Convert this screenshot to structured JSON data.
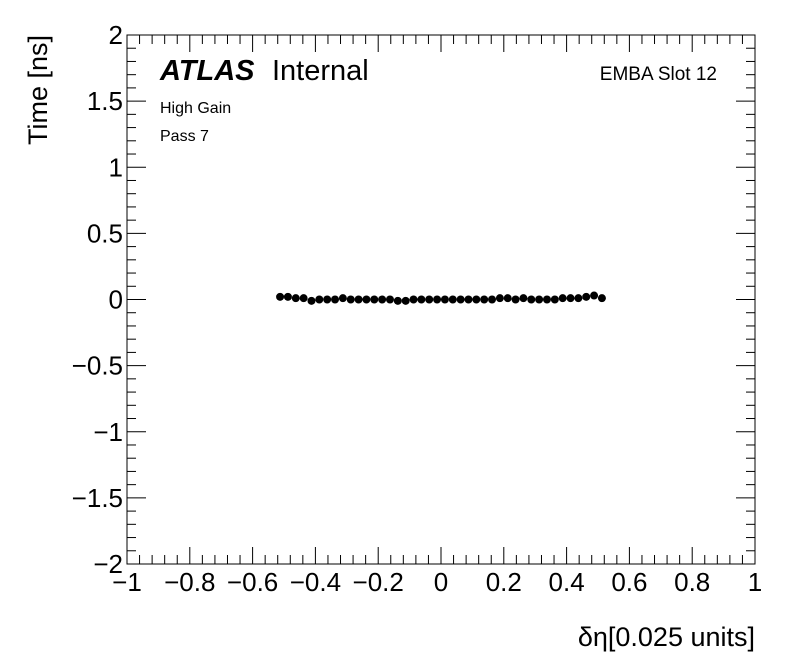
{
  "chart_data": {
    "type": "scatter",
    "x_label": "δη[0.025 units]",
    "y_label": "Time [ns]",
    "annotations": [
      "ATLAS",
      "Internal",
      "EMBA Slot 12",
      "High Gain",
      "Pass 7"
    ],
    "color": "#000000",
    "x": [
      -0.5125,
      -0.4875,
      -0.4625,
      -0.4375,
      -0.4125,
      -0.3875,
      -0.3625,
      -0.3375,
      -0.3125,
      -0.2875,
      -0.2625,
      -0.2375,
      -0.2125,
      -0.1875,
      -0.1625,
      -0.1375,
      -0.1125,
      -0.0875,
      -0.0625,
      -0.0375,
      -0.0125,
      0.0125,
      0.0375,
      0.0625,
      0.0875,
      0.1125,
      0.1375,
      0.1625,
      0.1875,
      0.2125,
      0.2375,
      0.2625,
      0.2875,
      0.3125,
      0.3375,
      0.3625,
      0.3875,
      0.4125,
      0.4375,
      0.4625,
      0.4875,
      0.5125
    ],
    "values": [
      0.02,
      0.02,
      0.01,
      0.01,
      -0.01,
      0,
      0,
      0,
      0.01,
      0,
      0,
      0,
      0,
      0,
      0,
      -0.01,
      -0.01,
      0,
      0,
      0,
      0,
      0,
      0,
      0,
      0,
      0,
      0,
      0,
      0.01,
      0.01,
      0,
      0.01,
      0,
      0,
      0,
      0,
      0.01,
      0.01,
      0.01,
      0.02,
      0.03,
      0.01
    ],
    "xlim": [
      -1,
      1
    ],
    "ylim": [
      -2,
      2
    ],
    "xticks": [
      {
        "value": -1,
        "label": "−1"
      },
      {
        "value": -0.8,
        "label": "−0.8"
      },
      {
        "value": -0.6,
        "label": "−0.6"
      },
      {
        "value": -0.4,
        "label": "−0.4"
      },
      {
        "value": -0.2,
        "label": "−0.2"
      },
      0,
      0.2,
      0.4,
      0.6,
      0.8,
      1
    ],
    "yticks": [
      {
        "value": -2,
        "label": "−2"
      },
      {
        "value": -1.5,
        "label": "−1.5"
      },
      {
        "value": -1,
        "label": "−1"
      },
      {
        "value": -0.5,
        "label": "−0.5"
      },
      0,
      0.5,
      1,
      1.5,
      2
    ],
    "grid": false
  }
}
